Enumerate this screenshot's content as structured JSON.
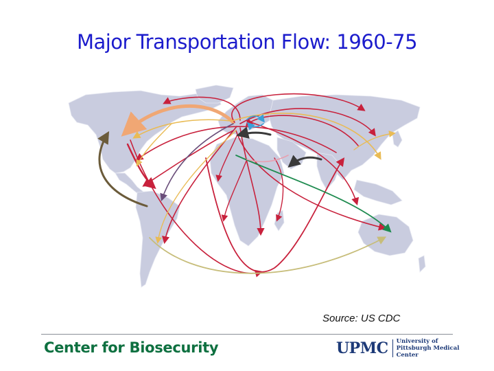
{
  "title": "Major Transportation Flow: 1960-75",
  "source": "Source: US CDC",
  "footer": {
    "organization": "Center for Biosecurity",
    "logo_text": "UPMC",
    "logo_subtext": "University of Pittsburgh Medical Center"
  },
  "map": {
    "land_color": "#c9ccdf",
    "flow_colors": {
      "red": "#c8213c",
      "orange": "#f0a774",
      "yellow": "#e9bb55",
      "olive": "#6b5b3a",
      "dark": "#3a3a3a",
      "green": "#1e8b4f",
      "blue": "#3aa0d8",
      "purple": "#6a4e7a",
      "khaki": "#c7bd7a",
      "pink": "#e8a0b0"
    }
  }
}
